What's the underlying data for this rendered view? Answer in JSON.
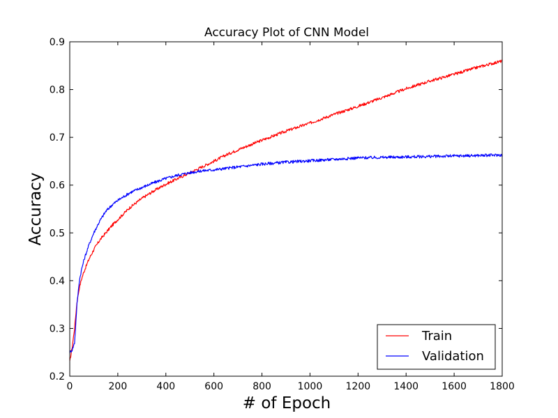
{
  "chart_data": {
    "type": "line",
    "title": "Accuracy Plot of CNN Model",
    "xlabel": "# of Epoch",
    "ylabel": "Accuracy",
    "xlim": [
      0,
      1800
    ],
    "ylim": [
      0.2,
      0.9
    ],
    "xticks": [
      0,
      200,
      400,
      600,
      800,
      1000,
      1200,
      1400,
      1600,
      1800
    ],
    "xtick_labels": [
      "0",
      "200",
      "400",
      "600",
      "800",
      "1000",
      "1200",
      "1400",
      "1600",
      "1800"
    ],
    "yticks": [
      0.2,
      0.3,
      0.4,
      0.5,
      0.6,
      0.7,
      0.8,
      0.9
    ],
    "ytick_labels": [
      "0.2",
      "0.3",
      "0.4",
      "0.5",
      "0.6",
      "0.7",
      "0.8",
      "0.9"
    ],
    "grid": false,
    "legend_position": "bottom-right",
    "series": [
      {
        "name": "Train",
        "color": "#ff0000",
        "x": [
          0,
          10,
          20,
          30,
          40,
          50,
          60,
          80,
          100,
          125,
          150,
          175,
          200,
          250,
          300,
          350,
          400,
          450,
          500,
          550,
          600,
          650,
          700,
          750,
          800,
          900,
          1000,
          1100,
          1200,
          1300,
          1400,
          1500,
          1600,
          1700,
          1800
        ],
        "values": [
          0.23,
          0.26,
          0.3,
          0.355,
          0.385,
          0.405,
          0.42,
          0.445,
          0.465,
          0.485,
          0.5,
          0.515,
          0.528,
          0.553,
          0.572,
          0.588,
          0.602,
          0.614,
          0.626,
          0.638,
          0.65,
          0.663,
          0.674,
          0.684,
          0.694,
          0.713,
          0.73,
          0.748,
          0.765,
          0.783,
          0.802,
          0.818,
          0.832,
          0.847,
          0.86
        ]
      },
      {
        "name": "Validation",
        "color": "#0000ff",
        "x": [
          0,
          10,
          20,
          30,
          40,
          50,
          60,
          80,
          100,
          125,
          150,
          175,
          200,
          250,
          300,
          350,
          400,
          450,
          500,
          550,
          600,
          650,
          700,
          750,
          800,
          900,
          1000,
          1100,
          1200,
          1300,
          1400,
          1500,
          1600,
          1700,
          1800
        ],
        "values": [
          0.25,
          0.255,
          0.27,
          0.35,
          0.4,
          0.425,
          0.445,
          0.475,
          0.5,
          0.525,
          0.545,
          0.558,
          0.568,
          0.584,
          0.595,
          0.605,
          0.614,
          0.621,
          0.626,
          0.63,
          0.632,
          0.635,
          0.638,
          0.641,
          0.644,
          0.648,
          0.651,
          0.654,
          0.657,
          0.658,
          0.659,
          0.66,
          0.661,
          0.662,
          0.663
        ]
      }
    ]
  }
}
